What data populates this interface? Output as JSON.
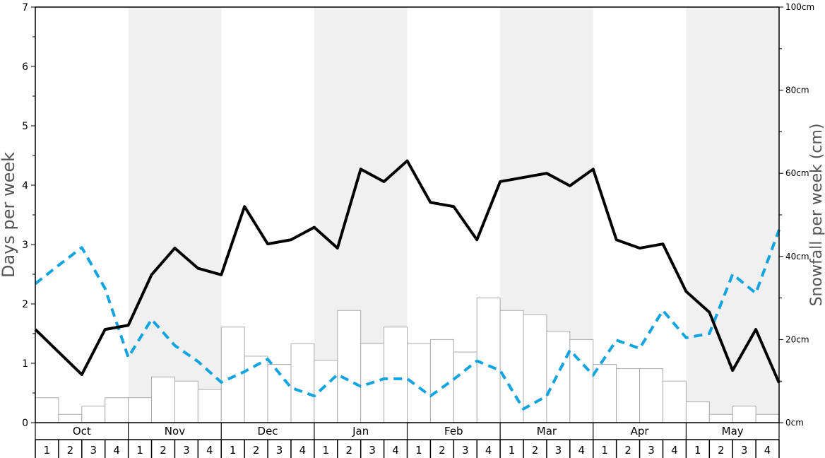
{
  "chart_data": {
    "type": "bar+line",
    "title": "",
    "y_left": {
      "label": "Days per week",
      "range": [
        0,
        7
      ],
      "ticks": [
        "0",
        "1",
        "2",
        "3",
        "4",
        "5",
        "6",
        "7"
      ]
    },
    "y_right": {
      "label": "Snowfall per week (cm)",
      "range": [
        0,
        100
      ],
      "ticks": [
        "0cm",
        "20cm",
        "40cm",
        "60cm",
        "80cm",
        "100cm"
      ]
    },
    "months": [
      "Oct",
      "Nov",
      "Dec",
      "Jan",
      "Feb",
      "Mar",
      "Apr",
      "May"
    ],
    "week_labels": [
      "1",
      "2",
      "3",
      "4",
      "1",
      "2",
      "3",
      "4",
      "1",
      "2",
      "3",
      "4",
      "1",
      "2",
      "3",
      "4",
      "1",
      "2",
      "3",
      "4",
      "1",
      "2",
      "3",
      "4",
      "1",
      "2",
      "3",
      "4",
      "1",
      "2",
      "3",
      "4"
    ],
    "colors": {
      "band": "#f0f0f0",
      "bar_fill": "#ffffff",
      "bar_stroke": "#aaaaaa",
      "solid_line": "#000000",
      "dashed_line": "#11a4e0"
    },
    "snowfall_bars_cm": [
      6,
      2,
      4,
      6,
      6,
      11,
      10,
      8,
      23,
      16,
      14,
      19,
      15,
      27,
      19,
      23,
      19,
      20,
      17,
      30,
      27,
      26,
      22,
      20,
      14,
      13,
      13,
      10,
      5,
      2,
      4,
      2
    ],
    "solid_line_days": [
      1.57,
      1.19,
      0.81,
      1.57,
      1.64,
      2.49,
      2.94,
      2.6,
      2.49,
      3.64,
      3.01,
      3.08,
      3.29,
      2.94,
      4.27,
      4.06,
      4.41,
      3.71,
      3.64,
      3.08,
      4.06,
      4.13,
      4.2,
      3.99,
      4.27,
      3.08,
      2.94,
      3.01,
      2.21,
      1.86,
      0.88,
      1.57,
      0.67
    ],
    "dashed_line_days": [
      2.34,
      2.65,
      2.95,
      2.26,
      1.1,
      1.74,
      1.3,
      1.03,
      0.68,
      0.86,
      1.07,
      0.59,
      0.45,
      0.81,
      0.61,
      0.74,
      0.74,
      0.45,
      0.73,
      1.04,
      0.88,
      0.23,
      0.45,
      1.22,
      0.8,
      1.39,
      1.25,
      1.89,
      1.43,
      1.5,
      2.5,
      2.18,
      3.25
    ]
  }
}
